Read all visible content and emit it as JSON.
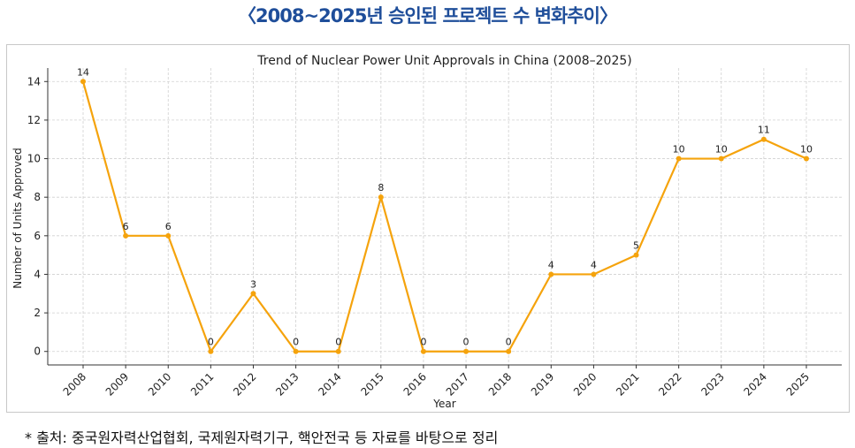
{
  "page_title": "〈2008~2025년 승인된 프로젝트 수 변화추이〉",
  "footer": "* 출처:  중국원자력산업협회, 국제원자력기구, 핵안전국 등 자료를 바탕으로 정리",
  "colors": {
    "line": "#f5a30c",
    "title": "#1f4e9a",
    "grid": "#d0d0d0"
  },
  "chart_data": {
    "type": "line",
    "title": "Trend of Nuclear Power Unit Approvals in China (2008–2025)",
    "xlabel": "Year",
    "ylabel": "Number of Units Approved",
    "x": [
      "2008",
      "2009",
      "2010",
      "2011",
      "2012",
      "2013",
      "2014",
      "2015",
      "2016",
      "2017",
      "2018",
      "2019",
      "2020",
      "2021",
      "2022",
      "2023",
      "2024",
      "2025"
    ],
    "values": [
      14,
      6,
      6,
      0,
      3,
      0,
      0,
      8,
      0,
      0,
      0,
      4,
      4,
      5,
      10,
      10,
      11,
      10
    ],
    "yticks": [
      0,
      2,
      4,
      6,
      8,
      10,
      12,
      14
    ],
    "ylim": [
      -0.7,
      14.7
    ],
    "grid": true,
    "data_labels": true
  }
}
